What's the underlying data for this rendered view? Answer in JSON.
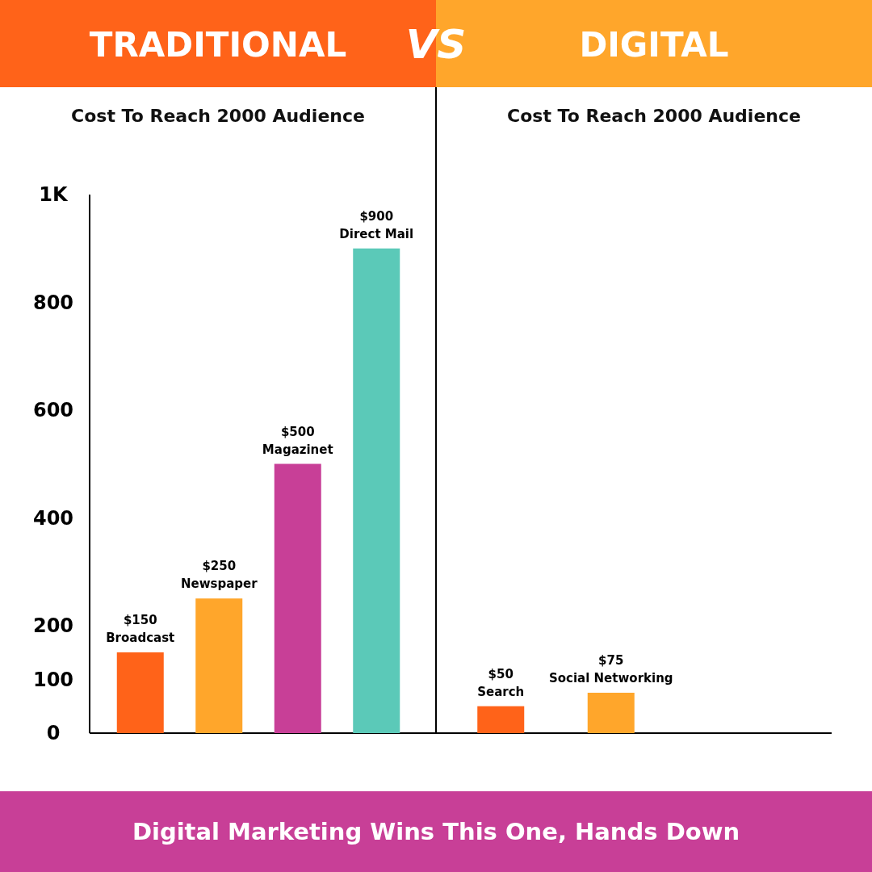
{
  "chart_data": [
    {
      "type": "bar",
      "title": "TRADITIONAL",
      "subtitle": "Cost To Reach 2000 Audience",
      "categories": [
        "Broadcast",
        "Newspaper",
        "Magazinet",
        "Direct Mail"
      ],
      "values": [
        150,
        250,
        500,
        900
      ],
      "colors": [
        "#ff6319",
        "#ffa62b",
        "#c83f97",
        "#5bc9b8"
      ],
      "value_labels": [
        "$150",
        "$250",
        "$500",
        "$900"
      ],
      "ylim": [
        0,
        1000
      ],
      "yticks": [
        0,
        100,
        200,
        400,
        600,
        800,
        {
          "value": 1000,
          "label": "1K"
        }
      ],
      "tick_labels": "y",
      "annotations": [
        "VS"
      ]
    },
    {
      "type": "bar",
      "title": "DIGITAL",
      "subtitle": "Cost To Reach 2000 Audience",
      "categories": [
        "Search",
        "Social Networking"
      ],
      "values": [
        50,
        75
      ],
      "colors": [
        "#ff6319",
        "#ffa62b"
      ],
      "value_labels": [
        "$50",
        "$75"
      ],
      "ylim": [
        0,
        1000
      ],
      "tick_labels": false,
      "annotations": [
        "Digital Marketing Wins This One, Hands Down"
      ]
    }
  ]
}
